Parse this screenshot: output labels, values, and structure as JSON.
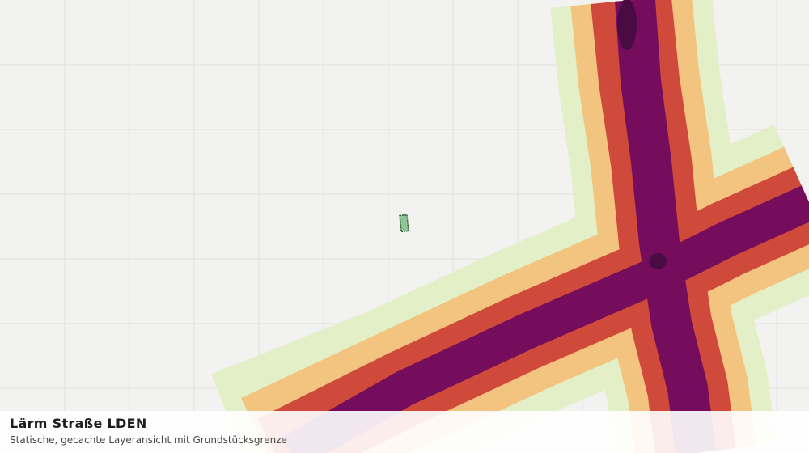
{
  "layer": {
    "title": "Lärm Straße LDEN",
    "subtitle": "Statische, gecachte Layeransicht mit Grundstücksgrenze"
  }
}
